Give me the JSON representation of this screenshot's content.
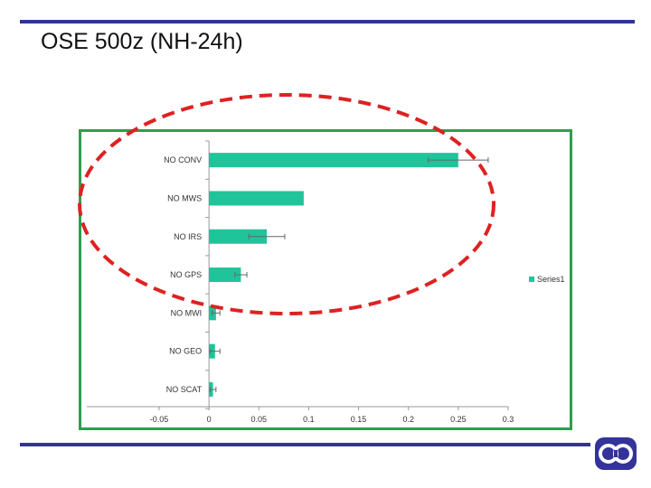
{
  "slide": {
    "title": "OSE 500z (NH-24h)"
  },
  "colors": {
    "bar": "#20c49a",
    "frame": "#2e9e4e",
    "rule": "#333399",
    "ellipse": "#dd2222"
  },
  "chart_data": {
    "type": "bar",
    "orientation": "horizontal",
    "categories": [
      "NO CONV",
      "NO MWS",
      "NO IRS",
      "NO GPS",
      "NO MWI",
      "NO GEO",
      "NO SCAT"
    ],
    "series": [
      {
        "name": "Series1",
        "values": [
          0.25,
          0.095,
          0.058,
          0.032,
          0.007,
          0.006,
          0.004
        ]
      }
    ],
    "error": [
      0.03,
      0.0,
      0.018,
      0.006,
      0.004,
      0.005,
      0.003
    ],
    "xlim": [
      -0.05,
      0.3
    ],
    "xticks": [
      "-0.05",
      "0",
      "0.05",
      "0.1",
      "0.15",
      "0.2",
      "0.25",
      "0.3"
    ],
    "legend_position": "right",
    "annotation": "dashed red ellipse highlighting NO CONV, NO MWS, NO IRS, NO GPS"
  }
}
